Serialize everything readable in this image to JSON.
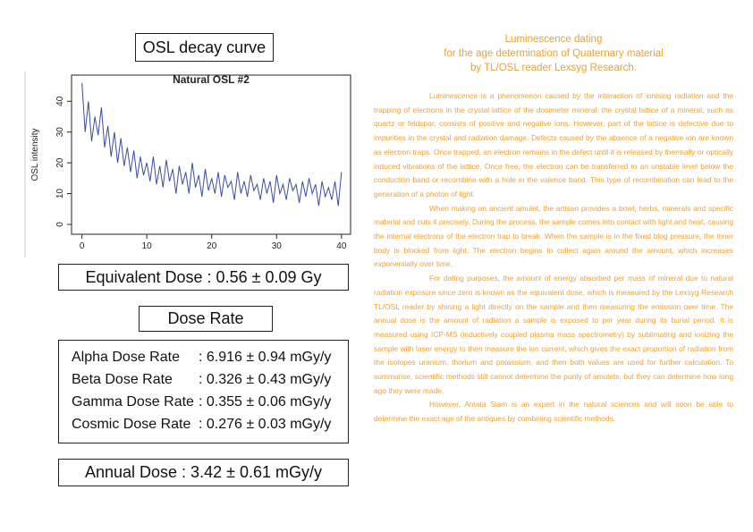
{
  "panel_title": "OSL decay curve",
  "chart_data": {
    "type": "line",
    "title": "Natural OSL #2",
    "y_label": "OSL intensity",
    "color": "#3a4d9f",
    "x": [
      0,
      0.5,
      1,
      1.5,
      2,
      2.5,
      3,
      3.5,
      4,
      4.5,
      5,
      5.5,
      6,
      6.5,
      7,
      7.5,
      8,
      8.5,
      9,
      9.5,
      10,
      10.5,
      11,
      11.5,
      12,
      12.5,
      13,
      13.5,
      14,
      14.5,
      15,
      15.5,
      16,
      16.5,
      17,
      17.5,
      18,
      18.5,
      19,
      19.5,
      20,
      20.5,
      21,
      21.5,
      22,
      22.5,
      23,
      23.5,
      24,
      24.5,
      25,
      25.5,
      26,
      26.5,
      27,
      27.5,
      28,
      28.5,
      29,
      29.5,
      30,
      30.5,
      31,
      31.5,
      32,
      32.5,
      33,
      33.5,
      34,
      34.5,
      35,
      35.5,
      36,
      36.5,
      37,
      37.5,
      38,
      38.5,
      39,
      39.5,
      40
    ],
    "values": [
      46,
      30,
      40,
      27,
      35,
      29,
      38,
      25,
      32,
      22,
      30,
      20,
      28,
      19,
      25,
      17,
      24,
      15,
      22,
      16,
      20,
      14,
      22,
      13,
      19,
      12,
      21,
      14,
      18,
      10,
      19,
      13,
      17,
      10,
      20,
      12,
      16,
      9,
      18,
      11,
      15,
      10,
      17,
      9,
      16,
      12,
      14,
      8,
      17,
      10,
      14,
      9,
      16,
      11,
      13,
      8,
      15,
      10,
      14,
      7,
      16,
      10,
      13,
      8,
      15,
      11,
      13,
      7,
      14,
      9,
      15,
      10,
      13,
      6,
      14,
      9,
      12,
      8,
      14,
      6,
      17
    ],
    "xlim": [
      -1.6,
      41.4
    ],
    "ylim": [
      -3.2,
      48.5
    ],
    "xticks": [
      0,
      10,
      20,
      30,
      40
    ],
    "yticks": [
      0,
      10,
      20,
      30,
      40
    ]
  },
  "equivalent_dose": "Equivalent Dose : 0.56 ±  0.09 Gy",
  "dose_rate_title": "Dose Rate",
  "dose_rates": [
    {
      "label": "Alpha Dose Rate",
      "value": ": 6.916 ±  0.94 mGy/y"
    },
    {
      "label": "Beta Dose Rate",
      "value": ": 0.326 ±  0.43 mGy/y"
    },
    {
      "label": "Gamma Dose Rate",
      "value": ": 0.355 ±  0.06 mGy/y"
    },
    {
      "label": "Cosmic Dose Rate",
      "value": ": 0.276 ± 0.03 mGy/y"
    }
  ],
  "annual_dose": "Annual Dose : 3.42 ±  0.61 mGy/y",
  "article": {
    "title": [
      "Luminescence dating",
      "for the age determination of Quaternary material",
      "by TL/OSL reader Lexsyg Research."
    ],
    "paragraphs": [
      "Luminescence is a phenomenon caused by the interaction of ionising radiation and the trapping of electrons in the crystal lattice of the dosimeter mineral. the crystal lattice of a mineral, such as quartz or feldspar, consists of positive and negative ions. However, part of the lattice is defective due to impurities in the crystal and radiation damage. Defects caused by the absence of a negative ion are known as electron traps. Once trapped, an electron remains in the defect until it is released by thermally or optically induced vibrations of the lattice. Once free, the electron can be transferred to an unstable level below the conduction band or recombine with a hole in the valence band. This type of recombination can lead to the generation of a photon of light.",
      "When making an ancient amulet, the artisan provides a bowl, herbs, minerals and specific material and cuts it precisely. During the process, the sample comes into contact with light and heat, causing the internal electrons of the electron trap to break. When the sample is in the fixed blog pressure, the inner body is blocked from light. The electron begins to collect again around the amount, which increases exponentially over time.",
      "For dating purposes, the amount of energy absorbed per mass of mineral due to natural radiation exposure since zero is known as the equivalent dose, which is measured by the Lexsyg Research TL/OSL reader by shining a light directly on the sample and then measuring the emission over time. The annual dose is the amount of radiation a sample is exposed to per year during its burial period. It is measured using ICP-MS (inductively coupled plasma mass spectrometry) by sublimating and ionizing the sample with laser energy to then measure the ion current, which gives the exact proportion of radiation from the isotopes uranium, thorium and potassium, and then both values are used for further calculation. To summarise, scientific methods still cannot determine the purity of amulets, but they can determine how long ago they were made.",
      "However, Amata Siam is an expert in the natural sciences and will soon be able to determine the exact age of the antiques by combining scientific methods."
    ]
  }
}
